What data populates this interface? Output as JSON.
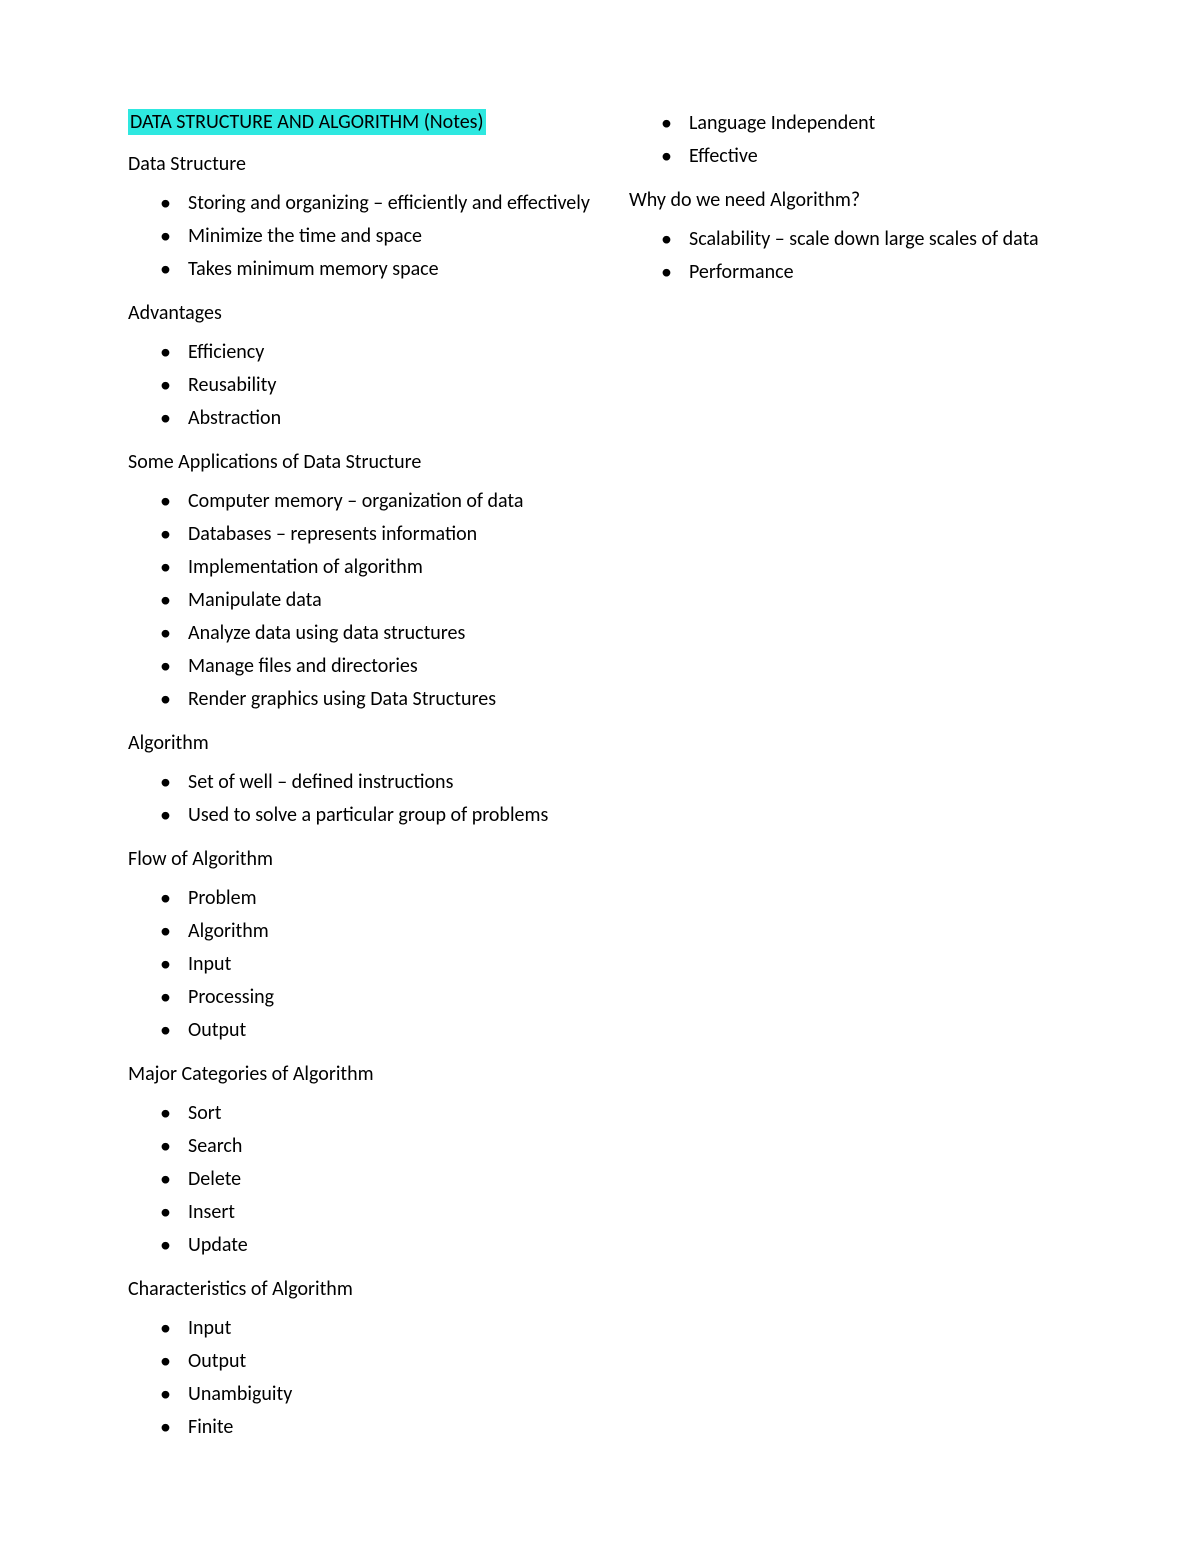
{
  "title": "DATA STRUCTURE AND ALGORITHM (Notes)",
  "highlight_color": "#2ee8e0",
  "text_color": "#000000",
  "background_color": "#ffffff",
  "font_size": 20,
  "sections": {
    "data_structure": {
      "header": "Data Structure",
      "items": [
        "Storing and organizing – efficiently and effectively",
        "Minimize the time and space",
        "Takes minimum memory space"
      ]
    },
    "advantages": {
      "header": "Advantages",
      "items": [
        "Efficiency",
        "Reusability",
        "Abstraction"
      ]
    },
    "applications": {
      "header": "Some Applications of Data Structure",
      "items": [
        "Computer memory – organization of data",
        "Databases – represents information",
        "Implementation of algorithm",
        "Manipulate data",
        "Analyze data using data structures",
        "Manage files and directories",
        "Render graphics using Data Structures"
      ]
    },
    "algorithm": {
      "header": "Algorithm",
      "items": [
        "Set of well – defined instructions",
        "Used to solve a particular group of problems"
      ]
    },
    "flow": {
      "header": "Flow of Algorithm",
      "items": [
        "Problem",
        "Algorithm",
        "Input",
        "Processing",
        "Output"
      ]
    },
    "categories": {
      "header": "Major Categories of Algorithm",
      "items": [
        "Sort",
        "Search",
        "Delete",
        "Insert",
        "Update"
      ]
    },
    "characteristics": {
      "header": "Characteristics of Algorithm",
      "items": [
        "Input",
        "Output",
        "Unambiguity",
        "Finite",
        "Language Independent",
        "Effective"
      ]
    },
    "why_need": {
      "header": "Why do we need Algorithm?",
      "items": [
        "Scalability – scale down large scales of data",
        "Performance"
      ]
    }
  }
}
